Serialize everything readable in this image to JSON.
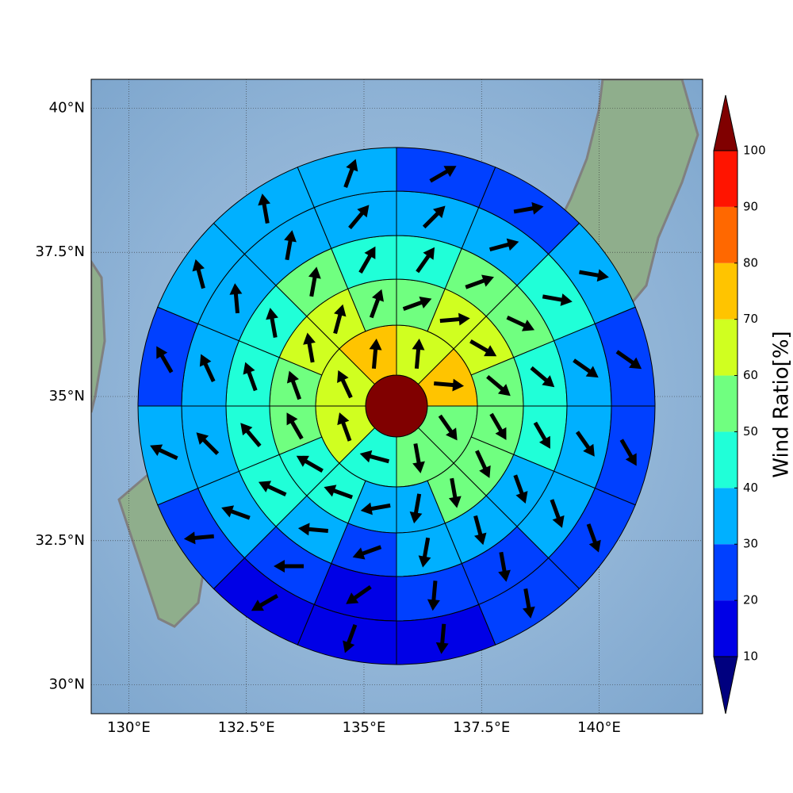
{
  "chart_data": {
    "type": "polar_sector_map",
    "xlim": [
      129.2,
      142.2
    ],
    "ylim": [
      29.5,
      40.5
    ],
    "xticks": [
      {
        "value": 130,
        "label": "130°E"
      },
      {
        "value": 132.5,
        "label": "132.5°E"
      },
      {
        "value": 135,
        "label": "135°E"
      },
      {
        "value": 137.5,
        "label": "137.5°E"
      },
      {
        "value": 140,
        "label": "140°E"
      }
    ],
    "yticks": [
      {
        "value": 30,
        "label": "30°N"
      },
      {
        "value": 32.5,
        "label": "32.5°N"
      },
      {
        "value": 35,
        "label": "35°N"
      },
      {
        "value": 37.5,
        "label": "37.5°N"
      },
      {
        "value": 40,
        "label": "40°N"
      }
    ],
    "grid": true,
    "colorbar": {
      "label": "Wind Ratio[%]",
      "levels": [
        10,
        20,
        30,
        40,
        50,
        60,
        70,
        80,
        90,
        100
      ],
      "colors": [
        "#00007f",
        "#0000e6",
        "#0040ff",
        "#00b0ff",
        "#20ffd8",
        "#70ff80",
        "#d0ff20",
        "#ffc400",
        "#ff6800",
        "#ff1400",
        "#800000"
      ]
    },
    "center_value": 105,
    "rings": [
      {
        "values": [
          65,
          75,
          55,
          55,
          45,
          65,
          65,
          75
        ],
        "directions": [
          5,
          95,
          145,
          170,
          285,
          340,
          335,
          5
        ]
      },
      {
        "values": [
          55,
          65,
          65,
          55,
          55,
          55,
          55,
          35,
          35,
          45,
          45,
          55,
          55,
          65,
          65,
          55
        ],
        "directions": [
          70,
          85,
          120,
          130,
          150,
          155,
          170,
          190,
          260,
          290,
          300,
          330,
          340,
          350,
          15,
          20
        ]
      },
      {
        "values": [
          45,
          55,
          55,
          45,
          45,
          35,
          35,
          35,
          25,
          35,
          45,
          45,
          45,
          45,
          55,
          45
        ],
        "directions": [
          35,
          70,
          115,
          130,
          150,
          160,
          165,
          190,
          250,
          275,
          295,
          320,
          340,
          350,
          10,
          30
        ]
      },
      {
        "values": [
          35,
          35,
          45,
          35,
          35,
          35,
          25,
          25,
          15,
          25,
          35,
          35,
          35,
          35,
          35,
          35
        ],
        "directions": [
          45,
          75,
          100,
          125,
          145,
          160,
          170,
          185,
          235,
          270,
          290,
          315,
          335,
          355,
          10,
          40
        ]
      },
      {
        "values": [
          25,
          25,
          35,
          25,
          25,
          25,
          25,
          15,
          15,
          15,
          25,
          35,
          25,
          35,
          35,
          35
        ],
        "directions": [
          60,
          80,
          100,
          125,
          150,
          160,
          170,
          185,
          200,
          240,
          265,
          295,
          330,
          345,
          350,
          20
        ]
      }
    ]
  }
}
